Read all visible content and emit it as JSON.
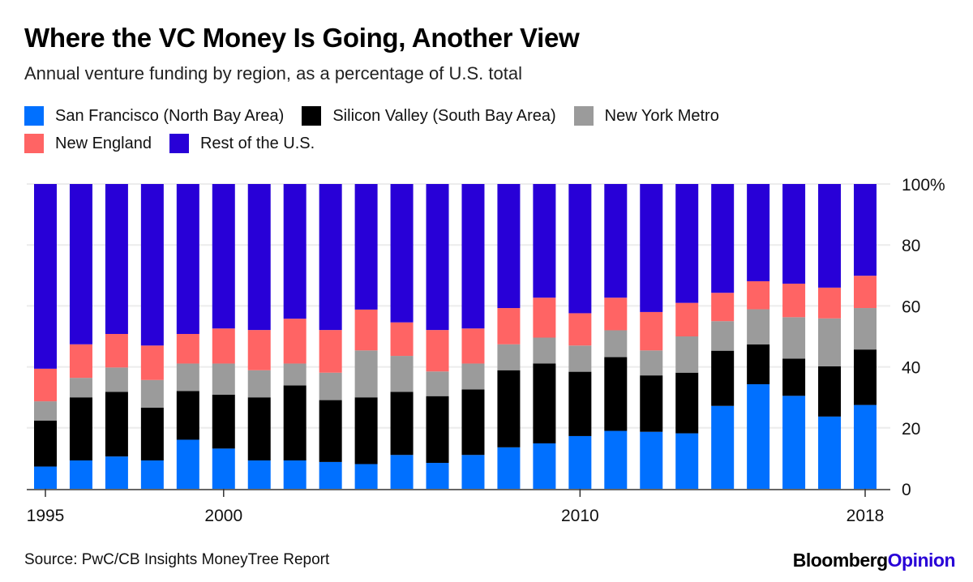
{
  "header": {
    "title": "Where the VC Money Is Going, Another View",
    "subtitle": "Annual venture funding by region, as a percentage of U.S. total"
  },
  "footer": {
    "source": "Source: PwC/CB Insights MoneyTree Report",
    "logo_brand": "Bloomberg",
    "logo_section": "Opinion"
  },
  "chart_data": {
    "type": "bar",
    "stacked": true,
    "title": "Where the VC Money Is Going, Another View",
    "subtitle": "Annual venture funding by region, as a percentage of U.S. total",
    "xlabel": "",
    "ylabel": "",
    "ylim": [
      0,
      100
    ],
    "yticks": [
      "0",
      "20",
      "40",
      "60",
      "80",
      "100%"
    ],
    "ytick_values": [
      0,
      20,
      40,
      60,
      80,
      100
    ],
    "xtick_labels": [
      "1995",
      "2000",
      "2010",
      "2018"
    ],
    "grid": true,
    "legend_placement": "top",
    "categories": [
      1995,
      1996,
      1997,
      1998,
      1999,
      2000,
      2001,
      2002,
      2003,
      2004,
      2005,
      2006,
      2007,
      2008,
      2009,
      2010,
      2011,
      2012,
      2013,
      2014,
      2015,
      2016,
      2017,
      2018
    ],
    "series": [
      {
        "name": "San Francisco (North Bay Area)",
        "color": "#0070ff",
        "values": [
          7.3,
          9.3,
          10.6,
          9.3,
          16.1,
          13.2,
          9.3,
          9.3,
          8.8,
          8.1,
          11.1,
          8.5,
          11.1,
          13.6,
          14.9,
          17.3,
          19.0,
          18.7,
          18.2,
          27.2,
          34.3,
          30.5,
          23.7,
          27.5
        ]
      },
      {
        "name": "Silicon Valley (South Bay Area)",
        "color": "#000000",
        "values": [
          15.1,
          20.7,
          21.2,
          17.3,
          16.0,
          17.7,
          20.7,
          24.6,
          20.3,
          21.9,
          20.7,
          21.9,
          21.5,
          25.3,
          26.2,
          21.1,
          24.2,
          18.5,
          19.9,
          18.1,
          13.1,
          12.2,
          16.5,
          18.2
        ]
      },
      {
        "name": "New York Metro",
        "color": "#9b9b9b",
        "values": [
          6.3,
          6.4,
          8.0,
          9.1,
          9.0,
          10.2,
          8.9,
          7.2,
          9.0,
          15.4,
          11.8,
          8.1,
          8.5,
          8.5,
          8.5,
          8.6,
          8.8,
          8.2,
          11.9,
          9.7,
          11.5,
          13.6,
          15.7,
          13.6
        ]
      },
      {
        "name": "New England",
        "color": "#ff6464",
        "values": [
          10.7,
          11.0,
          11.0,
          11.3,
          9.7,
          11.5,
          13.2,
          14.7,
          14.0,
          13.4,
          11.0,
          13.6,
          11.5,
          11.9,
          13.1,
          10.6,
          10.7,
          12.6,
          11.0,
          9.3,
          9.2,
          11.0,
          10.1,
          10.6
        ]
      },
      {
        "name": "Rest of the U.S.",
        "color": "#2800d7",
        "values": [
          60.6,
          52.6,
          49.2,
          53.0,
          49.2,
          47.4,
          47.9,
          44.2,
          47.9,
          41.2,
          45.4,
          47.9,
          47.4,
          40.7,
          37.3,
          42.4,
          37.3,
          42.0,
          39.0,
          35.7,
          31.9,
          32.7,
          34.0,
          30.1
        ]
      }
    ]
  }
}
